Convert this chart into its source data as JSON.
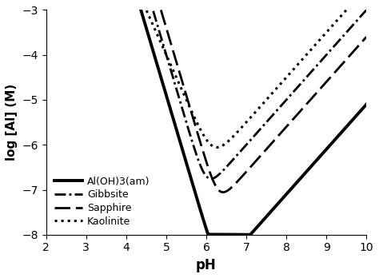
{
  "xlabel": "pH",
  "ylabel": "log [Al] (M)",
  "xlim": [
    2,
    10
  ],
  "ylim": [
    -8,
    -3
  ],
  "xticks": [
    2,
    3,
    4,
    5,
    6,
    7,
    8,
    9,
    10
  ],
  "yticks": [
    -8,
    -7,
    -6,
    -5,
    -4,
    -3
  ],
  "curves": [
    {
      "label": "Al(OH)3(am)",
      "linestyle": "solid",
      "linewidth": 2.8,
      "color": "#000000",
      "log_acid_intercept": 10.1,
      "acid_slope": -3.0,
      "log_base_intercept": -15.1,
      "base_slope": 1.0
    },
    {
      "label": "Gibbsite",
      "linestyle": "-.",
      "linewidth": 2.0,
      "color": "#000000",
      "log_acid_intercept": 11.0,
      "acid_slope": -3.0,
      "log_base_intercept": -13.0,
      "base_slope": 1.0
    },
    {
      "label": "Sapphire",
      "linestyle": "--",
      "linewidth": 2.0,
      "color": "#000000",
      "log_acid_intercept": 11.6,
      "acid_slope": -3.0,
      "log_base_intercept": -13.6,
      "base_slope": 1.0
    },
    {
      "label": "Kaolinite",
      "linestyle": ":",
      "linewidth": 2.2,
      "color": "#000000",
      "log_acid_intercept": 6.0,
      "acid_slope": -2.0,
      "log_base_intercept": -12.5,
      "base_slope": 1.0
    }
  ],
  "legend_fontsize": 9,
  "xlabel_fontsize": 12,
  "ylabel_fontsize": 11
}
